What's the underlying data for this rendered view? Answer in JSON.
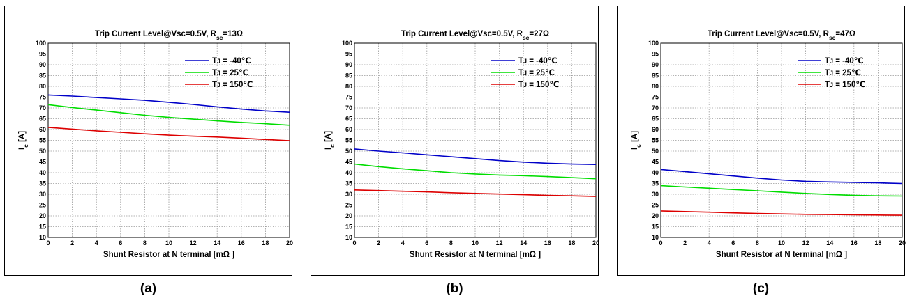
{
  "chart_data": [
    {
      "type": "line",
      "panel_label": "(a)",
      "title": "Trip Current Level@Vsc=0.5V, R",
      "title_sub": "sc",
      "title_tail": "=13Ω",
      "xlabel": "Shunt Resistor at N terminal [mΩ ]",
      "ylabel": "I",
      "ylabel_sub": "c",
      "ylabel_tail": " [A]",
      "xlim": [
        0,
        20
      ],
      "ylim": [
        10,
        100
      ],
      "xticks": [
        "0",
        "2",
        "4",
        "6",
        "8",
        "10",
        "12",
        "14",
        "16",
        "18",
        "20"
      ],
      "yticks": [
        "10",
        "15",
        "20",
        "25",
        "30",
        "35",
        "40",
        "45",
        "50",
        "55",
        "60",
        "65",
        "70",
        "75",
        "80",
        "85",
        "90",
        "95",
        "100"
      ],
      "grid": true,
      "legend_position": "top-right",
      "x": [
        0,
        2,
        4,
        6,
        8,
        10,
        12,
        14,
        16,
        18,
        20
      ],
      "series": [
        {
          "name": "TJ = -40℃",
          "name_main": "T",
          "name_sub": "J",
          "name_tail": " = -40℃",
          "color": "#0000c8",
          "values": [
            76,
            75.5,
            74.8,
            74.2,
            73.5,
            72.6,
            71.6,
            70.5,
            69.5,
            68.6,
            68
          ]
        },
        {
          "name": "TJ = 25℃",
          "name_main": "T",
          "name_sub": "J",
          "name_tail": " = 25℃",
          "color": "#00dd00",
          "values": [
            71.5,
            70.2,
            69,
            67.8,
            66.6,
            65.6,
            64.8,
            64,
            63.3,
            62.7,
            62
          ]
        },
        {
          "name": "TJ = 150℃",
          "name_main": "T",
          "name_sub": "J",
          "name_tail": " = 150℃",
          "color": "#dd0000",
          "values": [
            61,
            60.2,
            59.4,
            58.7,
            58,
            57.4,
            56.9,
            56.5,
            56,
            55.4,
            54.8
          ]
        }
      ]
    },
    {
      "type": "line",
      "panel_label": "(b)",
      "title": "Trip Current Level@Vsc=0.5V, R",
      "title_sub": "sc",
      "title_tail": "=27Ω",
      "xlabel": "Shunt Resistor at N terminal [mΩ ]",
      "ylabel": "I",
      "ylabel_sub": "c",
      "ylabel_tail": " [A]",
      "xlim": [
        0,
        20
      ],
      "ylim": [
        10,
        100
      ],
      "xticks": [
        "0",
        "2",
        "4",
        "6",
        "8",
        "10",
        "12",
        "14",
        "16",
        "18",
        "20"
      ],
      "yticks": [
        "10",
        "15",
        "20",
        "25",
        "30",
        "35",
        "40",
        "45",
        "50",
        "55",
        "60",
        "65",
        "70",
        "75",
        "80",
        "85",
        "90",
        "95",
        "100"
      ],
      "grid": true,
      "legend_position": "top-right",
      "x": [
        0,
        2,
        4,
        6,
        8,
        10,
        12,
        14,
        16,
        18,
        20
      ],
      "series": [
        {
          "name": "TJ = -40℃",
          "name_main": "T",
          "name_sub": "J",
          "name_tail": " = -40℃",
          "color": "#0000c8",
          "values": [
            51,
            50,
            49.2,
            48.3,
            47.4,
            46.5,
            45.6,
            44.9,
            44.4,
            44,
            43.8
          ]
        },
        {
          "name": "TJ = 25℃",
          "name_main": "T",
          "name_sub": "J",
          "name_tail": " = 25℃",
          "color": "#00dd00",
          "values": [
            44,
            42.8,
            41.8,
            40.9,
            40,
            39.4,
            38.9,
            38.6,
            38.2,
            37.7,
            37.2
          ]
        },
        {
          "name": "TJ = 150℃",
          "name_main": "T",
          "name_sub": "J",
          "name_tail": " = 150℃",
          "color": "#dd0000",
          "values": [
            32,
            31.7,
            31.4,
            31.1,
            30.7,
            30.4,
            30.1,
            29.8,
            29.5,
            29.3,
            29
          ]
        }
      ]
    },
    {
      "type": "line",
      "panel_label": "(c)",
      "title": "Trip Current Level@Vsc=0.5V, R",
      "title_sub": "sc",
      "title_tail": "=47Ω",
      "xlabel": "Shunt Resistor at N terminal [mΩ ]",
      "ylabel": "I",
      "ylabel_sub": "c",
      "ylabel_tail": " [A]",
      "xlim": [
        0,
        20
      ],
      "ylim": [
        10,
        100
      ],
      "xticks": [
        "0",
        "2",
        "4",
        "6",
        "8",
        "10",
        "12",
        "14",
        "16",
        "18",
        "20"
      ],
      "yticks": [
        "10",
        "15",
        "20",
        "25",
        "30",
        "35",
        "40",
        "45",
        "50",
        "55",
        "60",
        "65",
        "70",
        "75",
        "80",
        "85",
        "90",
        "95",
        "100"
      ],
      "grid": true,
      "legend_position": "top-right",
      "x": [
        0,
        2,
        4,
        6,
        8,
        10,
        12,
        14,
        16,
        18,
        20
      ],
      "series": [
        {
          "name": "TJ = -40℃",
          "name_main": "T",
          "name_sub": "J",
          "name_tail": " = -40℃",
          "color": "#0000c8",
          "values": [
            41.5,
            40.5,
            39.5,
            38.5,
            37.5,
            36.6,
            36,
            35.7,
            35.5,
            35.3,
            35
          ]
        },
        {
          "name": "TJ = 25℃",
          "name_main": "T",
          "name_sub": "J",
          "name_tail": " = 25℃",
          "color": "#00dd00",
          "values": [
            34,
            33.4,
            32.8,
            32.2,
            31.6,
            31,
            30.4,
            29.9,
            29.5,
            29.3,
            29.2
          ]
        },
        {
          "name": "TJ = 150℃",
          "name_main": "T",
          "name_sub": "J",
          "name_tail": " = 150℃",
          "color": "#dd0000",
          "values": [
            22.3,
            22,
            21.7,
            21.4,
            21.1,
            20.9,
            20.7,
            20.6,
            20.5,
            20.4,
            20.3
          ]
        }
      ]
    }
  ]
}
